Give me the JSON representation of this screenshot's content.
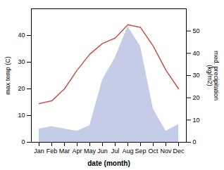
{
  "chart_data": {
    "type": "line",
    "xlabel": "date (month)",
    "ylabel": "max temp (C)",
    "y2label": "med. precipitation\n(kg/m2)",
    "categories": [
      "Jan",
      "Feb",
      "Mar",
      "Apr",
      "May",
      "Jun",
      "Jul",
      "Aug",
      "Sep",
      "Oct",
      "Nov",
      "Dec"
    ],
    "series": [
      {
        "type": "line",
        "color": "#c8504a",
        "values": [
          14.5,
          15.5,
          20,
          27,
          33,
          37,
          39,
          44,
          43,
          36,
          27,
          20
        ]
      },
      {
        "type": "area",
        "color": "#c5cce8",
        "axis": "y2",
        "values": [
          6,
          7,
          6,
          5,
          7.5,
          28,
          38,
          52,
          43,
          15,
          5,
          8
        ]
      }
    ],
    "ylim": [
      0,
      50
    ],
    "yticks": [
      0,
      10,
      20,
      30,
      40
    ],
    "y2lim": [
      0,
      60
    ],
    "y2ticks": [
      0,
      10,
      20,
      30,
      40,
      50
    ]
  }
}
